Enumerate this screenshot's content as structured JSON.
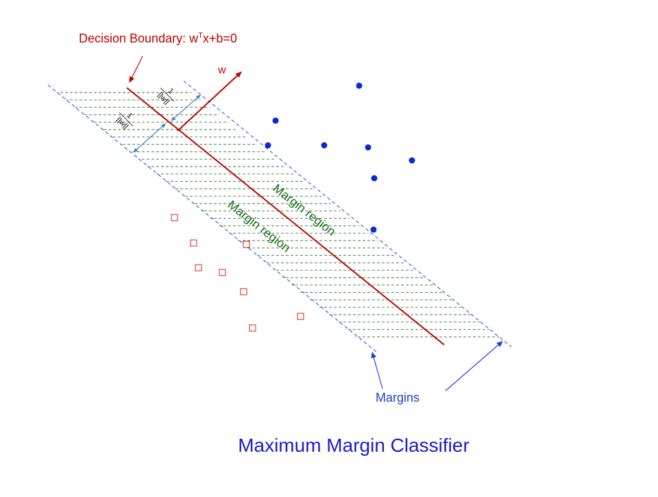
{
  "decision_boundary_label": "Decision Boundary: w",
  "decision_boundary_sup": "T",
  "decision_boundary_tail": "x+b=0",
  "w_label": "w",
  "margin_fraction": {
    "numerator": "1",
    "denominator": "||w||"
  },
  "margin_region_label": "Margin region",
  "margins_label": "Margins",
  "title": "Maximum Margin Classifier",
  "colors": {
    "boundary": "#c00000",
    "margin_line": "#1f3fcc",
    "hatch": "#2e7d32",
    "margin_text": "#1a6e1a",
    "positive_points": "#0a28d8",
    "negative_points": "#d02020",
    "width_arrow": "#4a80c0",
    "title": "#1a1ad0"
  }
}
